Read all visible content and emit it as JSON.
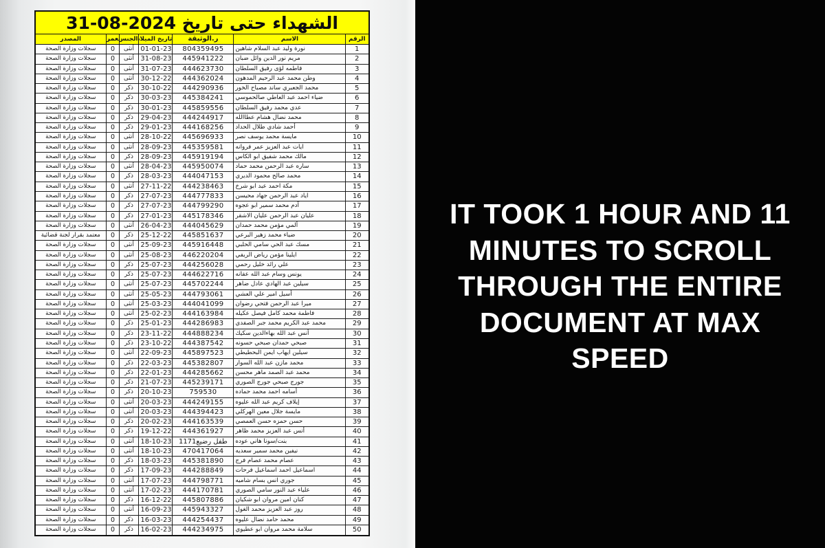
{
  "document": {
    "title": "الشهداء حتى تاريخ 2024-08-31",
    "columns": {
      "number": "الرقم",
      "name": "الاسم",
      "doc_id": "ر.الوثيقة",
      "birth_date": "تاريخ الميلاد",
      "gender": "الجنس",
      "age": "العمر",
      "source": "المصدر"
    },
    "rows": [
      [
        "1",
        "نورة وليد عبد السلام شاهين",
        "804359495",
        "01-01-23",
        "أنثى",
        "0",
        "سجلات وزارة الصحة"
      ],
      [
        "2",
        "مريم نور الدين وائل ضبان",
        "445941222",
        "31-08-23",
        "أنثى",
        "0",
        "سجلات وزارة الصحة"
      ],
      [
        "3",
        "فاطمه لؤى رفيق السلطان",
        "444623730",
        "31-07-23",
        "أنثى",
        "0",
        "سجلات وزارة الصحة"
      ],
      [
        "4",
        "وطن محمد عبد الرحيم المدهون",
        "444362024",
        "30-12-22",
        "أنثى",
        "0",
        "سجلات وزارة الصحة"
      ],
      [
        "5",
        "محمد الجعبري ساند مصباح الخور",
        "444290936",
        "30-10-22",
        "ذكر",
        "0",
        "سجلات وزارة الصحة"
      ],
      [
        "6",
        "ضياء احمد عبد العاطي صالحموسي",
        "445384241",
        "30-03-23",
        "ذكر",
        "0",
        "سجلات وزارة الصحة"
      ],
      [
        "7",
        "عدي محمد رفيق السلطان",
        "445859556",
        "30-01-23",
        "ذكر",
        "0",
        "سجلات وزارة الصحة"
      ],
      [
        "8",
        "محمد نضال هشام عطاالله",
        "444244917",
        "29-04-23",
        "ذكر",
        "0",
        "سجلات وزارة الصحة"
      ],
      [
        "9",
        "أحمد شادي طلال الحداد",
        "444168256",
        "29-01-23",
        "ذكر",
        "0",
        "سجلات وزارة الصحة"
      ],
      [
        "10",
        "مايسة محمد يوسف نصر",
        "445696933",
        "28-10-22",
        "أنثى",
        "0",
        "سجلات وزارة الصحة"
      ],
      [
        "11",
        "ايات عبد العزيز عمر فروانه",
        "445359581",
        "28-09-23",
        "أنثى",
        "0",
        "سجلات وزارة الصحة"
      ],
      [
        "12",
        "مالك محمد شفيق ابو الكاس",
        "445919194",
        "28-09-23",
        "ذكر",
        "0",
        "سجلات وزارة الصحة"
      ],
      [
        "13",
        "ساره عبد الرحمن محمد حماد",
        "445950074",
        "28-04-23",
        "أنثى",
        "0",
        "سجلات وزارة الصحة"
      ],
      [
        "14",
        "محمد صالح محمود الديري",
        "444047153",
        "28-03-23",
        "ذكر",
        "0",
        "سجلات وزارة الصحة"
      ],
      [
        "15",
        "مكة احمد عبد ابو شرخ",
        "444238463",
        "27-11-22",
        "أنثى",
        "0",
        "سجلات وزارة الصحة"
      ],
      [
        "16",
        "اياد عبد الرحمن جهاد محيسن",
        "444777833",
        "27-07-23",
        "ذكر",
        "0",
        "سجلات وزارة الصحة"
      ],
      [
        "17",
        "آدم محمد سمير ابو عجوه",
        "444799290",
        "27-07-23",
        "ذكر",
        "0",
        "سجلات وزارة الصحة"
      ],
      [
        "18",
        "عليان عبد الرحمن عليان الاشقر",
        "445178346",
        "27-01-23",
        "ذكر",
        "0",
        "سجلات وزارة الصحة"
      ],
      [
        "19",
        "ألمي مؤمن محمد حمدان",
        "444045629",
        "26-04-23",
        "أنثى",
        "0",
        "سجلات وزارة الصحة"
      ],
      [
        "20",
        "ضياء محمد زهير البرعي",
        "445851637",
        "25-12-22",
        "ذكر",
        "0",
        "معتمد بقرار لجنة قضائية"
      ],
      [
        "21",
        "مسك عبد الحي سامي الحلبي",
        "445916448",
        "25-09-23",
        "أنثى",
        "0",
        "سجلات وزارة الصحة"
      ],
      [
        "22",
        "ايلينا مؤمن رياض الريفي",
        "446220204",
        "25-08-23",
        "أنثى",
        "0",
        "سجلات وزارة الصحة"
      ],
      [
        "23",
        "علي رائد خليل رحمي",
        "444256028",
        "25-07-23",
        "ذكر",
        "0",
        "سجلات وزارة الصحة"
      ],
      [
        "24",
        "يونس وسام عبد الله عفانه",
        "444622716",
        "25-07-23",
        "ذكر",
        "0",
        "سجلات وزارة الصحة"
      ],
      [
        "25",
        "سيلين عبد الهادي عادل ضاهر",
        "445702244",
        "25-07-23",
        "أنثى",
        "0",
        "سجلات وزارة الصحة"
      ],
      [
        "26",
        "أسيل امير علي العشي",
        "444793061",
        "25-05-23",
        "أنثى",
        "0",
        "سجلات وزارة الصحة"
      ],
      [
        "27",
        "ميرا عبد الرحمن فتحي رضوان",
        "444041099",
        "25-03-23",
        "أنثى",
        "0",
        "سجلات وزارة الصحة"
      ],
      [
        "28",
        "فاطمة محمد كامل فيصل عكيله",
        "444163984",
        "25-02-23",
        "أنثى",
        "0",
        "سجلات وزارة الصحة"
      ],
      [
        "29",
        "محمد عبد الكريم محمد جبر الصفدي",
        "444286983",
        "25-01-23",
        "ذكر",
        "0",
        "سجلات وزارة الصحة"
      ],
      [
        "30",
        "أنس عبد الله بهاءالدين سكيك",
        "444888234",
        "23-11-22",
        "ذكر",
        "0",
        "سجلات وزارة الصحة"
      ],
      [
        "31",
        "صبحي حمدان صبحي حسونه",
        "444387542",
        "23-10-22",
        "ذكر",
        "0",
        "سجلات وزارة الصحة"
      ],
      [
        "32",
        "سيلين ايهاب ايمن البحطيطي",
        "445897523",
        "22-09-23",
        "أنثى",
        "0",
        "سجلات وزارة الصحة"
      ],
      [
        "33",
        "محمد مازن عبد الله السوار",
        "445382807",
        "22-03-23",
        "ذكر",
        "0",
        "سجلات وزارة الصحة"
      ],
      [
        "34",
        "محمد عبد الصمد ماهر محسن",
        "444285662",
        "22-01-23",
        "ذكر",
        "0",
        "سجلات وزارة الصحة"
      ],
      [
        "35",
        "جورج صبحي جورج الصوري",
        "445239171",
        "21-07-23",
        "ذكر",
        "0",
        "سجلات وزارة الصحة"
      ],
      [
        "36",
        "أسامه احمد محمد حماده",
        "759530",
        "20-10-23",
        "ذكر",
        "0",
        "سجلات وزارة الصحة"
      ],
      [
        "37",
        "إيلاف كريم عبد الله عليوه",
        "444249155",
        "20-03-23",
        "أنثى",
        "0",
        "سجلات وزارة الصحة"
      ],
      [
        "38",
        "مايسة جلال معين الهركلي",
        "444394423",
        "20-03-23",
        "أنثى",
        "0",
        "سجلات وزارة الصحة"
      ],
      [
        "39",
        "حسن حمزه حسن العمصي",
        "444163539",
        "20-02-23",
        "ذكر",
        "0",
        "سجلات وزارة الصحة"
      ],
      [
        "40",
        "أنس عبد العزيز محمد ظاهر",
        "444361927",
        "19-12-22",
        "ذكر",
        "0",
        "سجلات وزارة الصحة"
      ],
      [
        "41",
        "بنت/سونا هاني عوده",
        "طفل رضيع1171",
        "18-10-23",
        "أنثى",
        "0",
        "سجلات وزارة الصحة"
      ],
      [
        "42",
        "نيفين محمد سمير سعديه",
        "470417064",
        "18-10-23",
        "أنثى",
        "0",
        "سجلات وزارة الصحة"
      ],
      [
        "43",
        "عصام محمد عصام فرج",
        "445381890",
        "18-03-23",
        "ذكر",
        "0",
        "سجلات وزارة الصحة"
      ],
      [
        "44",
        "اسماعيل احمد اسماعيل فرحات",
        "444288849",
        "17-09-23",
        "ذكر",
        "0",
        "سجلات وزارة الصحة"
      ],
      [
        "45",
        "جوري انس بسام شاميه",
        "444798771",
        "17-07-23",
        "أنثى",
        "0",
        "سجلات وزارة الصحة"
      ],
      [
        "46",
        "علياء عبد النور سامي الصوري",
        "444170781",
        "17-02-23",
        "أنثى",
        "0",
        "سجلات وزارة الصحة"
      ],
      [
        "47",
        "كنان امين مروان ابو شكيان",
        "445807886",
        "16-12-22",
        "ذكر",
        "0",
        "سجلات وزارة الصحة"
      ],
      [
        "48",
        "روز عبد العزيز محمد الغول",
        "445943327",
        "16-09-23",
        "أنثى",
        "0",
        "سجلات وزارة الصحة"
      ],
      [
        "49",
        "محمد حامد نضال عليوه",
        "444254437",
        "16-03-23",
        "ذكر",
        "0",
        "سجلات وزارة الصحة"
      ],
      [
        "50",
        "سلامة محمد مروان ابو عطيوي",
        "444234975",
        "16-02-23",
        "ذكر",
        "0",
        "سجلات وزارة الصحة"
      ]
    ]
  },
  "overlay": {
    "lines": [
      "IT TOOK 1 HOUR AND 11",
      "MINUTES TO SCROLL",
      "THROUGH THE ENTIRE",
      "DOCUMENT AT MAX",
      "SPEED"
    ]
  },
  "colors": {
    "table_header_bg": "#ffff00",
    "table_border": "#101010",
    "page_bg": "#f3f4f4",
    "overlay_bg": "#040404",
    "overlay_text": "#ffffff"
  }
}
